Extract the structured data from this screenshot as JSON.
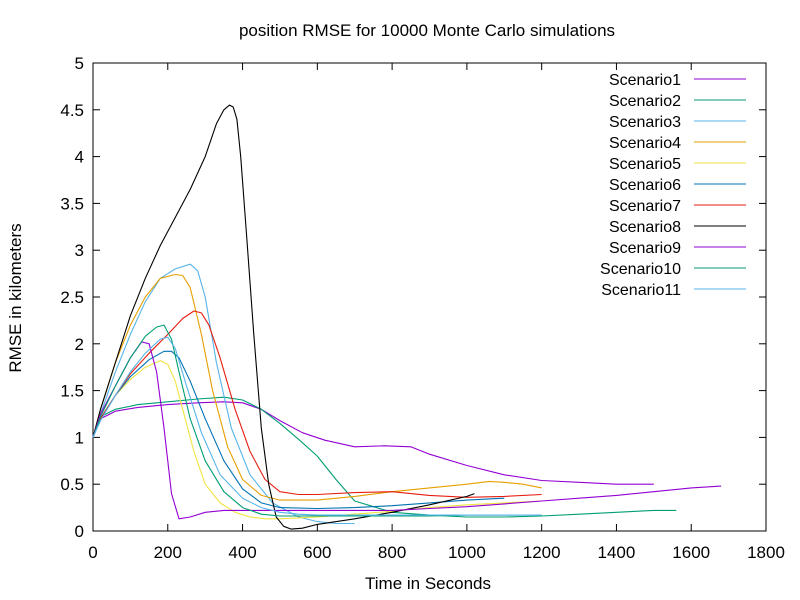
{
  "chart_data": {
    "type": "line",
    "title": "position RMSE for 10000 Monte Carlo simulations",
    "xlabel": "Time in Seconds",
    "ylabel": "RMSE in kilometers",
    "xlim": [
      0,
      1800
    ],
    "ylim": [
      0,
      5
    ],
    "x_ticks": [
      0,
      200,
      400,
      600,
      800,
      1000,
      1200,
      1400,
      1600,
      1800
    ],
    "y_ticks": [
      0,
      0.5,
      1,
      1.5,
      2,
      2.5,
      3,
      3.5,
      4,
      4.5,
      5
    ],
    "y_tick_labels": [
      "0",
      "0.5",
      "1",
      "1.5",
      "2",
      "2.5",
      "3",
      "3.5",
      "4",
      "4.5",
      "5"
    ],
    "grid": false,
    "legend_position": "top-right",
    "series": [
      {
        "name": "Scenario1",
        "color": "#9400d3",
        "x": [
          0,
          20,
          60,
          120,
          200,
          280,
          350,
          400,
          450,
          500,
          560,
          620,
          700,
          780,
          850,
          900,
          1000,
          1100,
          1200,
          1300,
          1400,
          1500
        ],
        "y": [
          1.0,
          1.2,
          1.28,
          1.32,
          1.35,
          1.37,
          1.38,
          1.37,
          1.3,
          1.18,
          1.05,
          0.97,
          0.9,
          0.91,
          0.9,
          0.82,
          0.7,
          0.6,
          0.54,
          0.52,
          0.5,
          0.5
        ]
      },
      {
        "name": "Scenario2",
        "color": "#009e73",
        "x": [
          0,
          20,
          60,
          120,
          200,
          280,
          350,
          400,
          450,
          500,
          550,
          600,
          650,
          700,
          800,
          900,
          1000,
          1100,
          1200,
          1300,
          1400,
          1500,
          1560
        ],
        "y": [
          1.0,
          1.22,
          1.3,
          1.35,
          1.38,
          1.41,
          1.43,
          1.4,
          1.3,
          1.15,
          0.98,
          0.8,
          0.55,
          0.32,
          0.2,
          0.17,
          0.15,
          0.15,
          0.16,
          0.18,
          0.2,
          0.22,
          0.22
        ]
      },
      {
        "name": "Scenario3",
        "color": "#56b4e9",
        "x": [
          0,
          20,
          60,
          100,
          140,
          180,
          220,
          260,
          280,
          300,
          330,
          370,
          420,
          480,
          550,
          600,
          650,
          700
        ],
        "y": [
          1.0,
          1.25,
          1.7,
          2.1,
          2.45,
          2.7,
          2.8,
          2.85,
          2.78,
          2.5,
          1.8,
          1.1,
          0.6,
          0.3,
          0.15,
          0.1,
          0.08,
          0.08
        ]
      },
      {
        "name": "Scenario4",
        "color": "#e69f00",
        "x": [
          0,
          20,
          60,
          100,
          140,
          180,
          220,
          240,
          260,
          290,
          320,
          360,
          400,
          450,
          500,
          600,
          700,
          800,
          900,
          1000,
          1060,
          1100,
          1150,
          1200
        ],
        "y": [
          1.0,
          1.3,
          1.8,
          2.2,
          2.5,
          2.7,
          2.74,
          2.73,
          2.6,
          2.1,
          1.5,
          0.9,
          0.55,
          0.38,
          0.33,
          0.33,
          0.37,
          0.42,
          0.46,
          0.5,
          0.53,
          0.52,
          0.5,
          0.46
        ]
      },
      {
        "name": "Scenario5",
        "color": "#f0e442",
        "x": [
          0,
          20,
          60,
          100,
          140,
          180,
          200,
          220,
          240,
          270,
          300,
          340,
          380,
          420,
          460,
          500,
          600,
          700,
          800,
          900,
          1000,
          1100,
          1200
        ],
        "y": [
          1.0,
          1.2,
          1.45,
          1.62,
          1.75,
          1.82,
          1.78,
          1.6,
          1.3,
          0.85,
          0.5,
          0.3,
          0.2,
          0.15,
          0.13,
          0.13,
          0.15,
          0.18,
          0.21,
          0.25,
          0.28,
          0.3,
          0.32
        ]
      },
      {
        "name": "Scenario6",
        "color": "#0072b2",
        "x": [
          0,
          20,
          60,
          100,
          150,
          190,
          210,
          230,
          260,
          300,
          350,
          400,
          450,
          500,
          600,
          700,
          800,
          900,
          1000,
          1100
        ],
        "y": [
          1.0,
          1.2,
          1.45,
          1.65,
          1.83,
          1.92,
          1.92,
          1.85,
          1.6,
          1.2,
          0.75,
          0.45,
          0.3,
          0.25,
          0.24,
          0.25,
          0.27,
          0.3,
          0.33,
          0.35
        ]
      },
      {
        "name": "Scenario7",
        "color": "#e51e10",
        "x": [
          0,
          20,
          60,
          100,
          150,
          200,
          240,
          270,
          290,
          310,
          340,
          380,
          420,
          460,
          500,
          550,
          600,
          700,
          800,
          900,
          1000,
          1100,
          1200
        ],
        "y": [
          1.0,
          1.2,
          1.45,
          1.68,
          1.9,
          2.1,
          2.27,
          2.35,
          2.33,
          2.2,
          1.85,
          1.3,
          0.85,
          0.55,
          0.42,
          0.39,
          0.39,
          0.41,
          0.42,
          0.38,
          0.36,
          0.37,
          0.39
        ]
      },
      {
        "name": "Scenario8",
        "color": "#000000",
        "x": [
          0,
          20,
          60,
          100,
          140,
          180,
          220,
          260,
          300,
          330,
          350,
          365,
          375,
          385,
          395,
          410,
          430,
          450,
          470,
          490,
          510,
          530,
          560,
          600,
          700,
          800,
          900,
          1000,
          1020
        ],
        "y": [
          1.0,
          1.3,
          1.8,
          2.3,
          2.7,
          3.05,
          3.35,
          3.65,
          4.0,
          4.35,
          4.5,
          4.55,
          4.53,
          4.4,
          4.0,
          3.2,
          2.1,
          1.1,
          0.5,
          0.15,
          0.05,
          0.02,
          0.03,
          0.07,
          0.13,
          0.2,
          0.28,
          0.37,
          0.4
        ]
      },
      {
        "name": "Scenario9",
        "color": "#9400d3",
        "x": [
          0,
          20,
          60,
          100,
          130,
          150,
          170,
          190,
          210,
          230,
          260,
          300,
          350,
          400,
          500,
          600,
          700,
          800,
          900,
          1000,
          1100,
          1200,
          1300,
          1400,
          1500,
          1600,
          1680
        ],
        "y": [
          1.0,
          1.25,
          1.55,
          1.85,
          2.02,
          2.0,
          1.7,
          1.1,
          0.4,
          0.13,
          0.15,
          0.2,
          0.22,
          0.22,
          0.22,
          0.22,
          0.22,
          0.22,
          0.24,
          0.26,
          0.29,
          0.32,
          0.35,
          0.38,
          0.42,
          0.46,
          0.48
        ]
      },
      {
        "name": "Scenario10",
        "color": "#009e73",
        "x": [
          0,
          20,
          60,
          100,
          140,
          170,
          190,
          210,
          230,
          260,
          300,
          350,
          400,
          450,
          500,
          600,
          700,
          800,
          900,
          1000,
          1100,
          1200
        ],
        "y": [
          1.0,
          1.22,
          1.55,
          1.85,
          2.08,
          2.18,
          2.2,
          2.05,
          1.7,
          1.2,
          0.75,
          0.42,
          0.25,
          0.18,
          0.16,
          0.16,
          0.16,
          0.16,
          0.16,
          0.17,
          0.17,
          0.17
        ]
      },
      {
        "name": "Scenario11",
        "color": "#56b4e9",
        "x": [
          0,
          20,
          60,
          100,
          140,
          180,
          200,
          220,
          250,
          290,
          340,
          400,
          450,
          500,
          550,
          600,
          700,
          800,
          900,
          1000,
          1100,
          1200
        ],
        "y": [
          1.0,
          1.18,
          1.45,
          1.7,
          1.9,
          2.05,
          2.07,
          1.95,
          1.55,
          1.05,
          0.6,
          0.35,
          0.25,
          0.2,
          0.18,
          0.17,
          0.17,
          0.17,
          0.17,
          0.17,
          0.17,
          0.17
        ]
      }
    ]
  }
}
